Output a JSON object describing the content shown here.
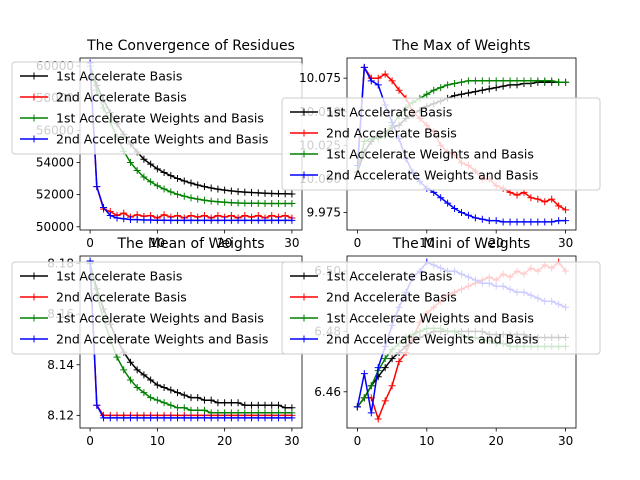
{
  "figure": {
    "background": "#ffffff"
  },
  "chart_data": [
    {
      "type": "line",
      "title": "The Convergence of Residues",
      "xlabel": "",
      "ylabel": "",
      "xlim": [
        -1.5,
        31.5
      ],
      "ylim": [
        49800,
        60500
      ],
      "xticks": [
        0,
        10,
        20,
        30
      ],
      "yticks": [
        50000,
        52000,
        54000,
        56000,
        58000,
        60000
      ],
      "yticklabels": [
        "50000",
        "52000",
        "54000",
        "56000",
        "58000",
        "60000"
      ],
      "grid": false,
      "legend_position": "upper-left",
      "x": [
        0,
        1,
        2,
        3,
        4,
        5,
        6,
        7,
        8,
        9,
        10,
        11,
        12,
        13,
        14,
        15,
        16,
        17,
        18,
        19,
        20,
        21,
        22,
        23,
        24,
        25,
        26,
        27,
        28,
        29,
        30
      ],
      "series": [
        {
          "name": "1st Accelerate Basis",
          "color": "#000000",
          "marker": "+",
          "values": [
            60000,
            58800,
            57900,
            57100,
            56400,
            55750,
            55150,
            54650,
            54200,
            53900,
            53600,
            53380,
            53180,
            53000,
            52850,
            52720,
            52600,
            52500,
            52410,
            52340,
            52280,
            52230,
            52190,
            52160,
            52130,
            52110,
            52090,
            52070,
            52060,
            52050,
            52040
          ]
        },
        {
          "name": "2nd Accelerate Basis",
          "color": "#ff0000",
          "marker": "+",
          "values": [
            60000,
            52500,
            51100,
            50950,
            50700,
            50850,
            50600,
            50750,
            50650,
            50700,
            50550,
            50750,
            50600,
            50700,
            50550,
            50700,
            50600,
            50700,
            50550,
            50700,
            50600,
            50700,
            50550,
            50700,
            50600,
            50700,
            50550,
            50700,
            50600,
            50700,
            50550
          ]
        },
        {
          "name": "1st Accelerate Weights and Basis",
          "color": "#008000",
          "marker": "+",
          "values": [
            60000,
            58500,
            57400,
            56500,
            55600,
            54700,
            54000,
            53500,
            53100,
            52800,
            52550,
            52350,
            52170,
            52020,
            51900,
            51800,
            51720,
            51650,
            51600,
            51560,
            51530,
            51500,
            51480,
            51470,
            51460,
            51460,
            51450,
            51450,
            51450,
            51450,
            51450
          ]
        },
        {
          "name": "2nd Accelerate Weights and Basis",
          "color": "#0000ff",
          "marker": "+",
          "values": [
            60200,
            52500,
            51200,
            50700,
            50550,
            50500,
            50450,
            50450,
            50420,
            50420,
            50410,
            50410,
            50400,
            50400,
            50400,
            50400,
            50400,
            50400,
            50400,
            50400,
            50400,
            50400,
            50400,
            50400,
            50400,
            50400,
            50400,
            50400,
            50400,
            50400,
            50400
          ]
        }
      ]
    },
    {
      "type": "line",
      "title": "The Max of Weights",
      "xlabel": "",
      "ylabel": "",
      "xlim": [
        -1.5,
        31.5
      ],
      "ylim": [
        9.962,
        10.09
      ],
      "xticks": [
        0,
        10,
        20,
        30
      ],
      "yticks": [
        9.975,
        10.0,
        10.025,
        10.05,
        10.075
      ],
      "yticklabels": [
        "9.975",
        "10.000",
        "10.025",
        "10.050",
        "10.075"
      ],
      "grid": false,
      "legend_position": "center",
      "x": [
        0,
        1,
        2,
        3,
        4,
        5,
        6,
        7,
        8,
        9,
        10,
        11,
        12,
        13,
        14,
        15,
        16,
        17,
        18,
        19,
        20,
        21,
        22,
        23,
        24,
        25,
        26,
        27,
        28,
        29,
        30
      ],
      "series": [
        {
          "name": "1st Accelerate Basis",
          "color": "#000000",
          "marker": "+",
          "values": [
            10.005,
            10.02,
            10.028,
            10.032,
            10.035,
            10.038,
            10.04,
            10.045,
            10.048,
            10.051,
            10.054,
            10.056,
            10.058,
            10.06,
            10.062,
            10.063,
            10.064,
            10.065,
            10.066,
            10.067,
            10.068,
            10.069,
            10.07,
            10.07,
            10.071,
            10.071,
            10.072,
            10.072,
            10.072,
            10.072,
            10.072
          ]
        },
        {
          "name": "2nd Accelerate Basis",
          "color": "#ff0000",
          "marker": "+",
          "values": [
            10.005,
            10.083,
            10.075,
            10.075,
            10.078,
            10.073,
            10.066,
            10.06,
            10.05,
            10.045,
            10.04,
            10.035,
            10.025,
            10.02,
            10.018,
            10.012,
            10.01,
            10.006,
            10.0,
            10.0,
            9.995,
            9.993,
            9.99,
            9.988,
            9.99,
            9.986,
            9.985,
            9.983,
            9.985,
            9.98,
            9.977
          ]
        },
        {
          "name": "1st Accelerate Weights and Basis",
          "color": "#008000",
          "marker": "+",
          "values": [
            10.005,
            10.028,
            10.03,
            10.03,
            10.032,
            10.04,
            10.047,
            10.053,
            10.057,
            10.06,
            10.063,
            10.066,
            10.068,
            10.07,
            10.071,
            10.072,
            10.073,
            10.073,
            10.073,
            10.073,
            10.073,
            10.073,
            10.073,
            10.073,
            10.073,
            10.073,
            10.073,
            10.073,
            10.073,
            10.072,
            10.072
          ]
        },
        {
          "name": "2nd Accelerate Weights and Basis",
          "color": "#0000ff",
          "marker": "+",
          "values": [
            10.01,
            10.083,
            10.073,
            10.07,
            10.055,
            10.042,
            10.03,
            10.015,
            10.005,
            9.998,
            9.993,
            9.99,
            9.986,
            9.982,
            9.978,
            9.975,
            9.973,
            9.971,
            9.97,
            9.969,
            9.969,
            9.968,
            9.968,
            9.968,
            9.968,
            9.968,
            9.968,
            9.968,
            9.968,
            9.969,
            9.969
          ]
        }
      ]
    },
    {
      "type": "line",
      "title": "The Mean of Weights",
      "xlabel": "",
      "ylabel": "",
      "xlim": [
        -1.5,
        31.5
      ],
      "ylim": [
        8.115,
        8.183
      ],
      "xticks": [
        0,
        10,
        20,
        30
      ],
      "yticks": [
        8.12,
        8.14,
        8.16,
        8.18
      ],
      "yticklabels": [
        "8.12",
        "8.14",
        "8.16",
        "8.18"
      ],
      "grid": false,
      "legend_position": "upper-left",
      "x": [
        0,
        1,
        2,
        3,
        4,
        5,
        6,
        7,
        8,
        9,
        10,
        11,
        12,
        13,
        14,
        15,
        16,
        17,
        18,
        19,
        20,
        21,
        22,
        23,
        24,
        25,
        26,
        27,
        28,
        29,
        30
      ],
      "series": [
        {
          "name": "1st Accelerate Basis",
          "color": "#000000",
          "marker": "+",
          "values": [
            8.18,
            8.17,
            8.162,
            8.156,
            8.15,
            8.145,
            8.141,
            8.138,
            8.136,
            8.134,
            8.132,
            8.131,
            8.13,
            8.129,
            8.128,
            8.127,
            8.127,
            8.126,
            8.126,
            8.125,
            8.125,
            8.125,
            8.125,
            8.124,
            8.124,
            8.124,
            8.124,
            8.124,
            8.124,
            8.123,
            8.123
          ]
        },
        {
          "name": "2nd Accelerate Basis",
          "color": "#ff0000",
          "marker": "+",
          "values": [
            8.18,
            8.124,
            8.12,
            8.12,
            8.12,
            8.12,
            8.12,
            8.12,
            8.12,
            8.12,
            8.12,
            8.12,
            8.12,
            8.12,
            8.12,
            8.12,
            8.12,
            8.12,
            8.12,
            8.12,
            8.12,
            8.12,
            8.12,
            8.12,
            8.12,
            8.12,
            8.12,
            8.12,
            8.12,
            8.12,
            8.12
          ]
        },
        {
          "name": "1st Accelerate Weights and Basis",
          "color": "#008000",
          "marker": "+",
          "values": [
            8.18,
            8.168,
            8.158,
            8.15,
            8.143,
            8.138,
            8.134,
            8.131,
            8.129,
            8.127,
            8.126,
            8.125,
            8.124,
            8.123,
            8.123,
            8.122,
            8.122,
            8.122,
            8.121,
            8.121,
            8.121,
            8.121,
            8.121,
            8.121,
            8.121,
            8.121,
            8.121,
            8.121,
            8.121,
            8.121,
            8.121
          ]
        },
        {
          "name": "2nd Accelerate Weights and Basis",
          "color": "#0000ff",
          "marker": "+",
          "values": [
            8.181,
            8.124,
            8.119,
            8.119,
            8.119,
            8.119,
            8.119,
            8.119,
            8.119,
            8.119,
            8.119,
            8.119,
            8.119,
            8.119,
            8.119,
            8.119,
            8.119,
            8.119,
            8.119,
            8.119,
            8.119,
            8.119,
            8.119,
            8.119,
            8.119,
            8.119,
            8.119,
            8.119,
            8.119,
            8.119,
            8.119
          ]
        }
      ]
    },
    {
      "type": "line",
      "title": "The Mini of Weights",
      "xlabel": "",
      "ylabel": "",
      "xlim": [
        -1.5,
        31.5
      ],
      "ylim": [
        6.448,
        6.505
      ],
      "xticks": [
        0,
        10,
        20,
        30
      ],
      "yticks": [
        6.46,
        6.48,
        6.5
      ],
      "yticklabels": [
        "6.46",
        "6.48",
        "6.50"
      ],
      "grid": false,
      "legend_position": "upper-left",
      "x": [
        0,
        1,
        2,
        3,
        4,
        5,
        6,
        7,
        8,
        9,
        10,
        11,
        12,
        13,
        14,
        15,
        16,
        17,
        18,
        19,
        20,
        21,
        22,
        23,
        24,
        25,
        26,
        27,
        28,
        29,
        30
      ],
      "series": [
        {
          "name": "1st Accelerate Basis",
          "color": "#000000",
          "marker": "+",
          "values": [
            6.455,
            6.458,
            6.462,
            6.465,
            6.468,
            6.471,
            6.473,
            6.475,
            6.477,
            6.478,
            6.479,
            6.48,
            6.48,
            6.48,
            6.48,
            6.48,
            6.48,
            6.48,
            6.48,
            6.479,
            6.479,
            6.479,
            6.479,
            6.479,
            6.479,
            6.478,
            6.478,
            6.478,
            6.478,
            6.478,
            6.478
          ]
        },
        {
          "name": "2nd Accelerate Basis",
          "color": "#ff0000",
          "marker": "+",
          "values": [
            6.455,
            6.458,
            6.458,
            6.451,
            6.457,
            6.462,
            6.47,
            6.473,
            6.478,
            6.483,
            6.486,
            6.488,
            6.49,
            6.492,
            6.493,
            6.494,
            6.495,
            6.496,
            6.497,
            6.498,
            6.497,
            6.499,
            6.498,
            6.5,
            6.499,
            6.501,
            6.5,
            6.502,
            6.501,
            6.503,
            6.5
          ]
        },
        {
          "name": "1st Accelerate Weights and Basis",
          "color": "#008000",
          "marker": "+",
          "values": [
            6.455,
            6.458,
            6.462,
            6.467,
            6.471,
            6.474,
            6.476,
            6.478,
            6.479,
            6.48,
            6.481,
            6.481,
            6.481,
            6.48,
            6.48,
            6.479,
            6.478,
            6.478,
            6.477,
            6.477,
            6.476,
            6.476,
            6.475,
            6.475,
            6.475,
            6.475,
            6.475,
            6.475,
            6.475,
            6.475,
            6.475
          ]
        },
        {
          "name": "2nd Accelerate Weights and Basis",
          "color": "#0000ff",
          "marker": "+",
          "values": [
            6.455,
            6.466,
            6.453,
            6.468,
            6.475,
            6.482,
            6.488,
            6.493,
            6.498,
            6.5,
            6.503,
            6.502,
            6.501,
            6.5,
            6.5,
            6.499,
            6.498,
            6.497,
            6.496,
            6.496,
            6.495,
            6.495,
            6.494,
            6.493,
            6.493,
            6.492,
            6.491,
            6.49,
            6.49,
            6.489,
            6.488
          ]
        }
      ]
    }
  ]
}
